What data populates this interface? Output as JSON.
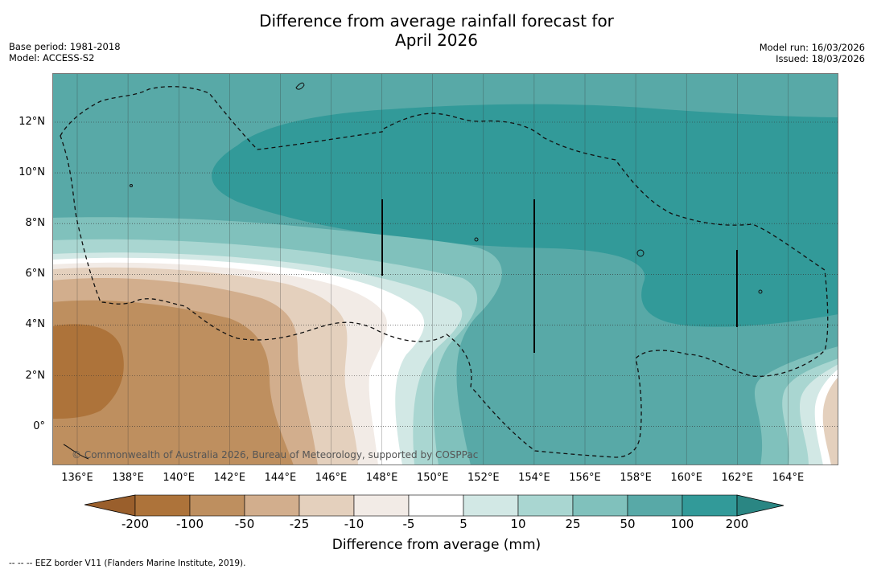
{
  "title_line1": "Difference from average rainfall forecast for",
  "title_line2": "April 2026",
  "meta_left": [
    "Base period: 1981-2018",
    "Model: ACCESS-S2"
  ],
  "meta_right": [
    "Model run: 16/03/2026",
    "Issued: 18/03/2026"
  ],
  "copyright": "© Commonwealth of Australia 2026, Bureau of Meteorology, supported by COSPPac",
  "lat_labels": [
    "12°N",
    "10°N",
    "8°N",
    "6°N",
    "4°N",
    "2°N",
    "0°"
  ],
  "lon_labels": [
    "136°E",
    "138°E",
    "140°E",
    "142°E",
    "144°E",
    "146°E",
    "148°E",
    "150°E",
    "152°E",
    "154°E",
    "156°E",
    "158°E",
    "160°E",
    "162°E",
    "164°E"
  ],
  "colorbar": {
    "ticks": [
      "-200",
      "-100",
      "-50",
      "-25",
      "-10",
      "-5",
      "5",
      "10",
      "25",
      "50",
      "100",
      "200"
    ],
    "colors": [
      "#ad733a",
      "#be8f5f",
      "#d2ae8d",
      "#e4d0bd",
      "#f2ebe6",
      "#ffffff",
      "#d2e8e5",
      "#a9d6d1",
      "#80c1bc",
      "#58a9a7",
      "#329a99"
    ],
    "extend_low_color": "#9a5f2c",
    "extend_high_color": "#2a8683",
    "title": "Difference from average (mm)"
  },
  "map_colors": {
    "base": "#58a9a7",
    "wet_max": "#329a99",
    "dry_max": "#ad733a"
  },
  "footer": "--  --  -- EEZ border V11 (Flanders Marine Institute, 2019)."
}
